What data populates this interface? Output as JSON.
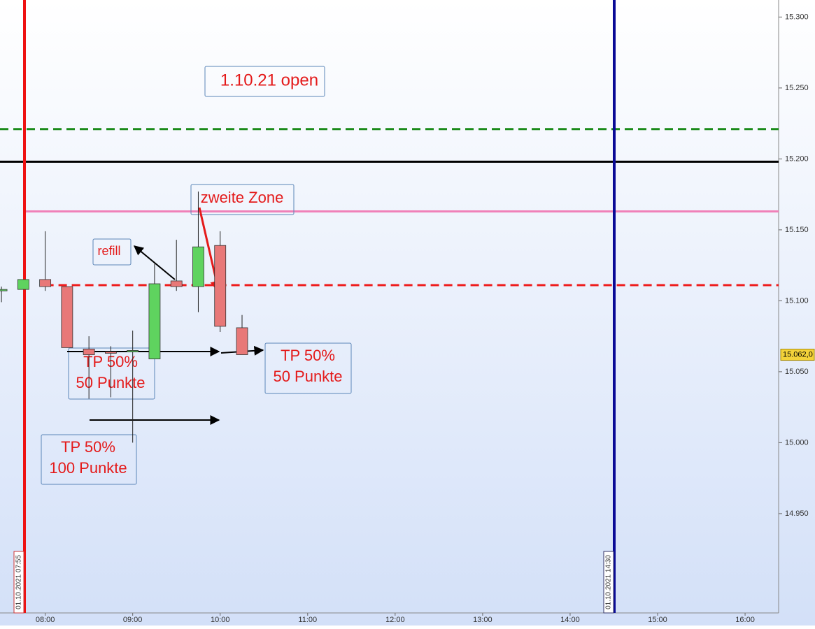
{
  "chart_data": {
    "type": "candlestick",
    "x": [
      "07:30",
      "07:45",
      "08:00",
      "08:15",
      "08:30",
      "08:45",
      "09:00",
      "09:15",
      "09:30",
      "09:45",
      "10:00",
      "10:15"
    ],
    "open": [
      15107,
      15108,
      15115,
      15110,
      15066,
      15064,
      15064,
      15059,
      15114,
      15110,
      15139,
      15081
    ],
    "high": [
      15110,
      15115,
      15149,
      15110,
      15075,
      15068,
      15079,
      15126,
      15143,
      15177,
      15149,
      15090
    ],
    "low": [
      15099,
      15108,
      15107,
      15067,
      15031,
      15032,
      15000,
      15059,
      15107,
      15092,
      15078,
      15062
    ],
    "close": [
      15108,
      15115,
      15110,
      15067,
      15062,
      15063,
      15065,
      15112,
      15110,
      15138,
      15082,
      15062
    ],
    "up_color": "#5fd35f",
    "down_color": "#e87878",
    "xlim": [
      "07:29",
      "16:23"
    ],
    "xticks": [
      "08:00",
      "09:00",
      "10:00",
      "11:00",
      "12:00",
      "13:00",
      "14:00",
      "15:00",
      "16:00"
    ],
    "ylim": [
      14880,
      15312
    ],
    "yticks": [
      {
        "value": 14950,
        "label": "14.950"
      },
      {
        "value": 15000,
        "label": "15.000"
      },
      {
        "value": 15050,
        "label": "15.050"
      },
      {
        "value": 15100,
        "label": "15.100"
      },
      {
        "value": 15150,
        "label": "15.150"
      },
      {
        "value": 15200,
        "label": "15.200"
      },
      {
        "value": 15250,
        "label": "15.250"
      },
      {
        "value": 15300,
        "label": "15.300"
      }
    ],
    "levels": [
      {
        "value": 15221,
        "color": "#1a8a1a",
        "dashed": true,
        "from": "07:29"
      },
      {
        "value": 15198,
        "color": "#000000",
        "dashed": false,
        "from": "07:29"
      },
      {
        "value": 15163,
        "color": "#f080b8",
        "dashed": false,
        "from": "07:46"
      },
      {
        "value": 15111,
        "color": "#ee1c1c",
        "dashed": true,
        "from": "08:00"
      }
    ],
    "last_price": {
      "value": 15062,
      "label": "15.062,0"
    },
    "vlines": [
      "01.10.2021 07:55",
      "01.10.2021 14:30"
    ],
    "annotations": {
      "open": "1.10.21 open",
      "zone": "zweite Zone",
      "refill": "refill",
      "tp1": [
        "TP 50%",
        "50 Punkte"
      ],
      "tp2": [
        "TP 50%",
        "50 Punkte"
      ],
      "tp3": [
        "TP 50%",
        "100 Punkte"
      ]
    }
  }
}
